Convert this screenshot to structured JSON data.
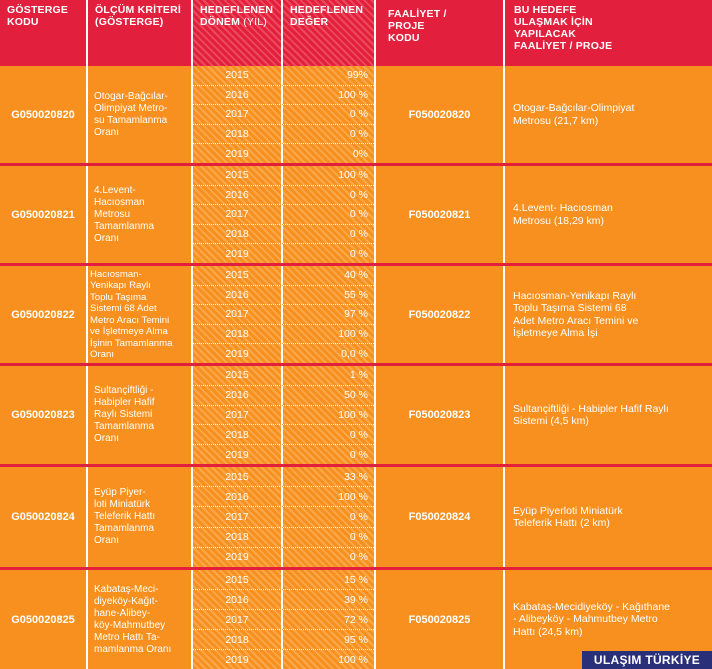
{
  "header": {
    "col1": "GÖSTERGE\nKODU",
    "col2_a": "ÖLÇÜM KRİTERİ",
    "col2_b": "(GÖSTERGE)",
    "col3_a": "HEDEFLENEN",
    "col3_b": "DÖNEM",
    "col3_c": "(YIL)",
    "col4": "HEDEFLENEN\nDEĞER",
    "col5": "FAALİYET /\nPROJE\nKODU",
    "col6": "BU HEDEFE\nULAŞMAK İÇİN\nYAPILACAK\nFAALİYET / PROJE"
  },
  "groups": [
    {
      "code": "G050020820",
      "criterion": "Otogar-Bağcılar-\nOlimpiyat Metro-\nsu Tamamlanma\nOranı",
      "rows": [
        {
          "year": "2015",
          "value": "99%"
        },
        {
          "year": "2016",
          "value": "100 %"
        },
        {
          "year": "2017",
          "value": "0 %"
        },
        {
          "year": "2018",
          "value": "0 %"
        },
        {
          "year": "2019",
          "value": "0%"
        }
      ],
      "activity_code": "F050020820",
      "activity": "Otogar-Bağcılar-Olimpiyat\nMetrosu (21,7 km)"
    },
    {
      "code": "G050020821",
      "criterion": "4.Levent-\nHacıosman\nMetrosu\nTamamlanma\nOranı",
      "rows": [
        {
          "year": "2015",
          "value": "100 %"
        },
        {
          "year": "2016",
          "value": "0 %"
        },
        {
          "year": "2017",
          "value": "0 %"
        },
        {
          "year": "2018",
          "value": "0 %"
        },
        {
          "year": "2019",
          "value": "0 %"
        }
      ],
      "activity_code": "F050020821",
      "activity": "4.Levent- Hacıosman\nMetrosu (18,29 km)"
    },
    {
      "code": "G050020822",
      "criterion": "Hacıosman-\nYenikapı Raylı\nToplu Taşıma\nSistemi 68 Adet\nMetro Aracı Temini\nve İşletmeye Alma\nİşinin Tamamlanma\nOranı",
      "rows": [
        {
          "year": "2015",
          "value": "40 %"
        },
        {
          "year": "2016",
          "value": "55 %"
        },
        {
          "year": "2017",
          "value": "97 %"
        },
        {
          "year": "2018",
          "value": "100 %"
        },
        {
          "year": "2019",
          "value": "0,0 %"
        }
      ],
      "activity_code": "F050020822",
      "activity": "Hacıosman-Yenikapı Raylı\nToplu Taşıma Sistemi 68\nAdet Metro Aracı Temini ve\nİşletmeye Alma İşi"
    },
    {
      "code": "G050020823",
      "criterion": "Sultançiftliği -\nHabipler Hafif\nRaylı Sistemi\nTamamlanma\nOranı",
      "rows": [
        {
          "year": "2015",
          "value": "1 %"
        },
        {
          "year": "2016",
          "value": "50 %"
        },
        {
          "year": "2017",
          "value": "100 %"
        },
        {
          "year": "2018",
          "value": "0 %"
        },
        {
          "year": "2019",
          "value": "0 %"
        }
      ],
      "activity_code": "F050020823",
      "activity": "Sultançiftliği - Habipler Hafif Raylı\nSistemi (4,5 km)"
    },
    {
      "code": "G050020824",
      "criterion": "Eyüp Piyer-\nloti Miniatürk\nTeleferik Hattı\nTamamlanma\nOranı",
      "rows": [
        {
          "year": "2015",
          "value": "33 %"
        },
        {
          "year": "2016",
          "value": "100 %"
        },
        {
          "year": "2017",
          "value": "0 %"
        },
        {
          "year": "2018",
          "value": "0 %"
        },
        {
          "year": "2019",
          "value": "0 %"
        }
      ],
      "activity_code": "F050020824",
      "activity": "Eyüp Piyerloti Miniatürk\nTeleferik Hattı (2 km)"
    },
    {
      "code": "G050020825",
      "criterion": "Kabataş-Meci-\ndiyeköy-Kağıt-\nhane-Alibey-\nköy-Mahmutbey\nMetro Hattı Ta-\nmamlanma Oranı",
      "rows": [
        {
          "year": "2015",
          "value": "15 %"
        },
        {
          "year": "2016",
          "value": "39 %"
        },
        {
          "year": "2017",
          "value": "72 %"
        },
        {
          "year": "2018",
          "value": "95 %"
        },
        {
          "year": "2019",
          "value": "100 %"
        }
      ],
      "activity_code": "F050020825",
      "activity": "Kabataş-Mecidiyeköy - Kağıthane\n- Alibeyköy - Mahmutbey Metro\nHattı (24,5 km)"
    }
  ],
  "footer_badge": "ULAŞIM TÜRKİYE",
  "colors": {
    "header_red": "#e21f3c",
    "body_orange": "#f7901e",
    "badge_navy": "#2a2f7a"
  }
}
